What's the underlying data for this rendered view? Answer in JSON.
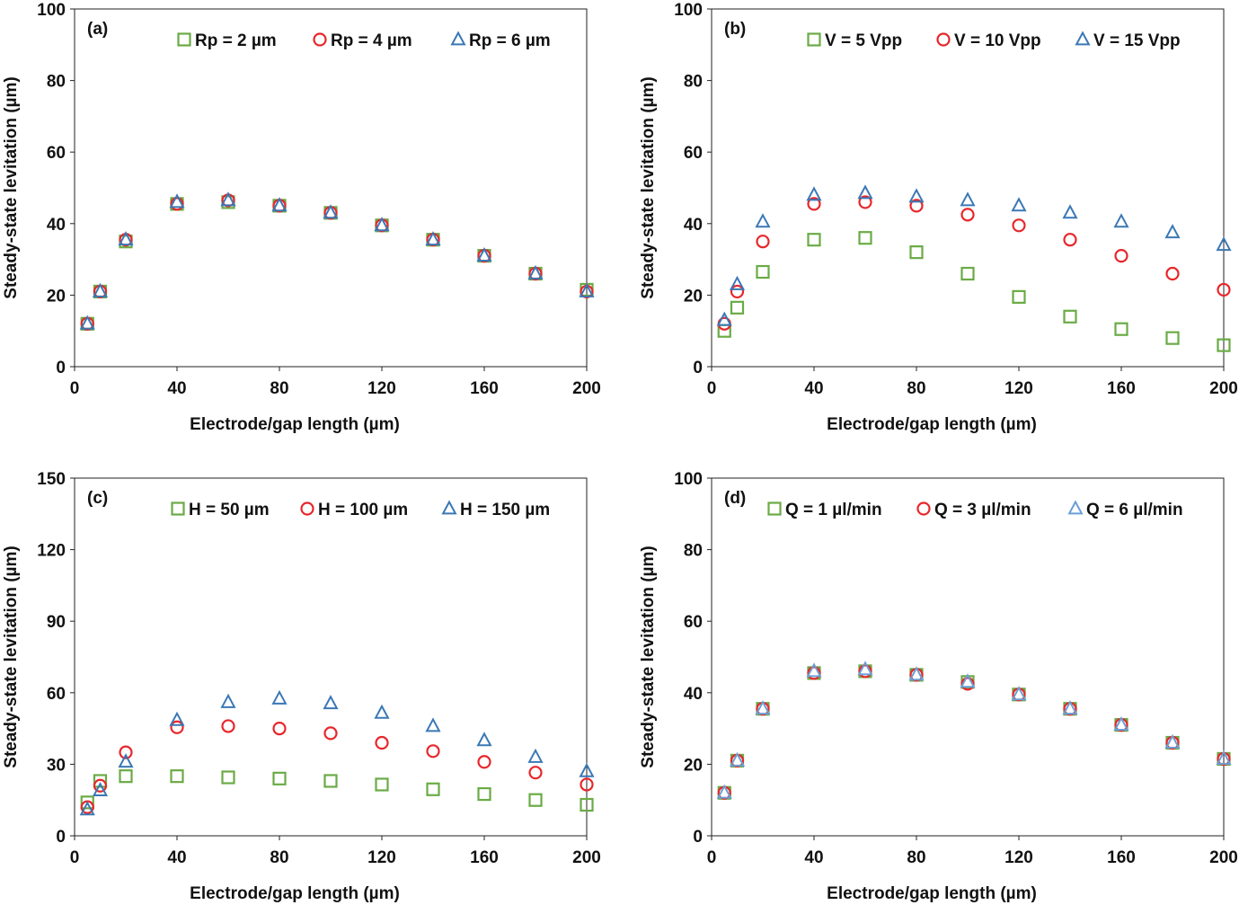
{
  "chart_data": [
    {
      "type": "scatter",
      "panel_label": "(a)",
      "xlabel": "Electrode/gap length (µm)",
      "ylabel": "Steady-state levitation (µm)",
      "xlim": [
        0,
        200
      ],
      "ylim": [
        0,
        100
      ],
      "xticks": [
        "0",
        "40",
        "80",
        "120",
        "160",
        "200"
      ],
      "yticks": [
        "0",
        "20",
        "40",
        "60",
        "80",
        "100"
      ],
      "legend_position": "top",
      "x": [
        5,
        10,
        20,
        40,
        60,
        80,
        100,
        120,
        140,
        160,
        180,
        200
      ],
      "series": [
        {
          "name": "Rp = 2 µm",
          "marker": "square",
          "color": "#6aab45",
          "values": [
            12,
            21,
            35,
            45.5,
            46,
            45,
            43,
            39.5,
            35.5,
            31,
            26,
            21.5
          ]
        },
        {
          "name": "Rp = 4 µm",
          "marker": "circle",
          "color": "#e8262b",
          "values": [
            12,
            21,
            35.5,
            45.5,
            46.5,
            45,
            43,
            39.5,
            35.5,
            31,
            26,
            21
          ]
        },
        {
          "name": "Rp = 6 µm",
          "marker": "triangle",
          "color": "#3a78b5",
          "values": [
            12,
            21,
            35.5,
            46,
            46.5,
            45,
            43,
            39.5,
            35.5,
            31,
            26,
            21
          ]
        }
      ]
    },
    {
      "type": "scatter",
      "panel_label": "(b)",
      "xlabel": "Electrode/gap length (µm)",
      "ylabel": "Steady-state levitation (µm)",
      "xlim": [
        0,
        200
      ],
      "ylim": [
        0,
        100
      ],
      "xticks": [
        "0",
        "40",
        "80",
        "120",
        "160",
        "200"
      ],
      "yticks": [
        "0",
        "20",
        "40",
        "60",
        "80",
        "100"
      ],
      "legend_position": "top",
      "x": [
        5,
        10,
        20,
        40,
        60,
        80,
        100,
        120,
        140,
        160,
        180,
        200
      ],
      "series": [
        {
          "name": "V = 5 Vpp",
          "marker": "square",
          "color": "#6aab45",
          "values": [
            10,
            16.5,
            26.5,
            35.5,
            36,
            32,
            26,
            19.5,
            14,
            10.5,
            8,
            6
          ]
        },
        {
          "name": "V = 10 Vpp",
          "marker": "circle",
          "color": "#e8262b",
          "values": [
            12,
            21,
            35,
            45.5,
            46,
            45,
            42.5,
            39.5,
            35.5,
            31,
            26,
            21.5
          ]
        },
        {
          "name": "V = 15 Vpp",
          "marker": "triangle",
          "color": "#3a78b5",
          "values": [
            13,
            23,
            40.5,
            48,
            48.5,
            47.5,
            46.5,
            45,
            43,
            40.5,
            37.5,
            34
          ]
        }
      ]
    },
    {
      "type": "scatter",
      "panel_label": "(c)",
      "xlabel": "Electrode/gap length (µm)",
      "ylabel": "Steady-state levitation (µm)",
      "xlim": [
        0,
        200
      ],
      "ylim": [
        0,
        150
      ],
      "xticks": [
        "0",
        "40",
        "80",
        "120",
        "160",
        "200"
      ],
      "yticks": [
        "0",
        "30",
        "60",
        "90",
        "120",
        "150"
      ],
      "legend_position": "top",
      "x": [
        5,
        10,
        20,
        40,
        60,
        80,
        100,
        120,
        140,
        160,
        180,
        200
      ],
      "series": [
        {
          "name": "H = 50 µm",
          "marker": "square",
          "color": "#6aab45",
          "values": [
            14,
            23,
            25,
            25,
            24.5,
            24,
            23,
            21.5,
            19.5,
            17.5,
            15,
            13
          ]
        },
        {
          "name": "H = 100 µm",
          "marker": "circle",
          "color": "#e8262b",
          "values": [
            12,
            21,
            35,
            45.5,
            46,
            45,
            43,
            39,
            35.5,
            31,
            26.5,
            21.5
          ]
        },
        {
          "name": "H = 150 µm",
          "marker": "triangle",
          "color": "#3a78b5",
          "values": [
            11,
            19,
            31,
            48.5,
            56,
            57.5,
            55.5,
            51.5,
            46,
            40,
            33,
            27
          ]
        }
      ]
    },
    {
      "type": "scatter",
      "panel_label": "(d)",
      "xlabel": "Electrode/gap length (µm)",
      "ylabel": "Steady-state levitation (µm)",
      "xlim": [
        0,
        200
      ],
      "ylim": [
        0,
        100
      ],
      "xticks": [
        "0",
        "40",
        "80",
        "120",
        "160",
        "200"
      ],
      "yticks": [
        "0",
        "20",
        "40",
        "60",
        "80",
        "100"
      ],
      "legend_position": "top",
      "x": [
        5,
        10,
        20,
        40,
        60,
        80,
        100,
        120,
        140,
        160,
        180,
        200
      ],
      "series": [
        {
          "name": "Q = 1 µl/min",
          "marker": "square",
          "color": "#6aab45",
          "values": [
            12,
            21,
            35.5,
            45.5,
            46,
            45,
            43,
            39.5,
            35.5,
            31,
            26,
            21.5
          ]
        },
        {
          "name": "Q = 3 µl/min",
          "marker": "circle",
          "color": "#e8262b",
          "values": [
            12,
            21,
            35.5,
            45.5,
            46,
            45,
            42.5,
            39.5,
            35.5,
            31,
            26,
            21.5
          ]
        },
        {
          "name": "Q = 6 µl/min",
          "marker": "triangle",
          "color": "#6a9fd4",
          "values": [
            12,
            21,
            35.5,
            46,
            46.5,
            45,
            43,
            39.5,
            35.5,
            31,
            26,
            21.5
          ]
        }
      ]
    }
  ]
}
